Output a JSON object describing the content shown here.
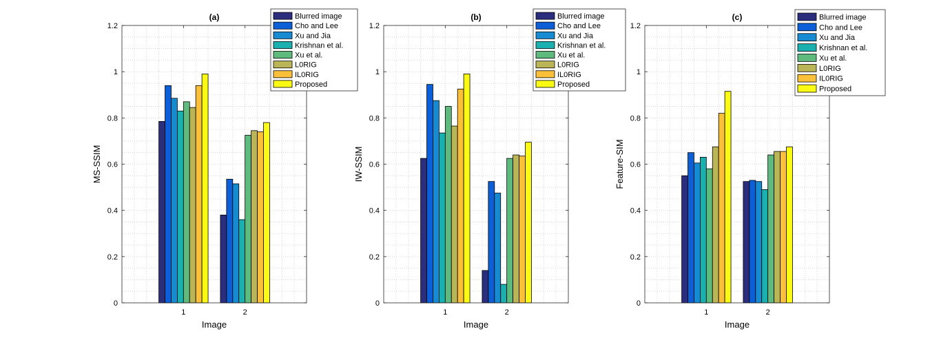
{
  "chart_data": [
    {
      "type": "bar",
      "title": "(a)",
      "xlabel": "Image",
      "ylabel": "MS-SSIM",
      "categories": [
        "1",
        "2"
      ],
      "ylim": [
        0,
        1.2
      ],
      "yticks": [
        "0",
        "0.2",
        "0.4",
        "0.6",
        "0.8",
        "1",
        "1.2"
      ],
      "grid": "minor-dotted",
      "legend_position": "top-right",
      "series": [
        {
          "name": "Blurred image",
          "values": [
            0.785,
            0.38
          ]
        },
        {
          "name": "Cho and Lee",
          "values": [
            0.94,
            0.535
          ]
        },
        {
          "name": "Xu and Jia",
          "values": [
            0.885,
            0.515
          ]
        },
        {
          "name": "Krishnan et al.",
          "values": [
            0.83,
            0.36
          ]
        },
        {
          "name": "Xu et al.",
          "values": [
            0.87,
            0.725
          ]
        },
        {
          "name": "L0RIG",
          "values": [
            0.845,
            0.745
          ]
        },
        {
          "name": "IL0RIG",
          "values": [
            0.94,
            0.74
          ]
        },
        {
          "name": "Proposed",
          "values": [
            0.99,
            0.78
          ]
        }
      ]
    },
    {
      "type": "bar",
      "title": "(b)",
      "xlabel": "Image",
      "ylabel": "IW-SSIM",
      "categories": [
        "1",
        "2"
      ],
      "ylim": [
        0,
        1.2
      ],
      "yticks": [
        "0",
        "0.2",
        "0.4",
        "0.6",
        "0.8",
        "1",
        "1.2"
      ],
      "grid": "minor-dotted",
      "legend_position": "top-right",
      "series": [
        {
          "name": "Blurred image",
          "values": [
            0.625,
            0.14
          ]
        },
        {
          "name": "Cho and Lee",
          "values": [
            0.945,
            0.525
          ]
        },
        {
          "name": "Xu and Jia",
          "values": [
            0.875,
            0.475
          ]
        },
        {
          "name": "Krishnan et al.",
          "values": [
            0.735,
            0.08
          ]
        },
        {
          "name": "Xu et al.",
          "values": [
            0.85,
            0.625
          ]
        },
        {
          "name": "L0RIG",
          "values": [
            0.765,
            0.64
          ]
        },
        {
          "name": "IL0RIG",
          "values": [
            0.925,
            0.635
          ]
        },
        {
          "name": "Proposed",
          "values": [
            0.99,
            0.695
          ]
        }
      ]
    },
    {
      "type": "bar",
      "title": "(c)",
      "xlabel": "Image",
      "ylabel": "Feature-SIM",
      "categories": [
        "1",
        "2"
      ],
      "ylim": [
        0,
        1.2
      ],
      "yticks": [
        "0",
        "0.2",
        "0.4",
        "0.6",
        "0.8",
        "1",
        "1.2"
      ],
      "grid": "minor-dotted",
      "legend_position": "top-right",
      "series": [
        {
          "name": "Blurred image",
          "values": [
            0.55,
            0.525
          ]
        },
        {
          "name": "Cho and Lee",
          "values": [
            0.65,
            0.53
          ]
        },
        {
          "name": "Xu and Jia",
          "values": [
            0.605,
            0.525
          ]
        },
        {
          "name": "Krishnan et al.",
          "values": [
            0.63,
            0.49
          ]
        },
        {
          "name": "Xu et al.",
          "values": [
            0.58,
            0.64
          ]
        },
        {
          "name": "L0RIG",
          "values": [
            0.675,
            0.655
          ]
        },
        {
          "name": "IL0RIG",
          "values": [
            0.82,
            0.655
          ]
        },
        {
          "name": "Proposed",
          "values": [
            0.915,
            0.675
          ]
        }
      ]
    }
  ],
  "colors": [
    "#2b2d7d",
    "#0c5fd6",
    "#178bd1",
    "#1ab0b0",
    "#5fba7d",
    "#bab557",
    "#fbc03a",
    "#fafa14"
  ]
}
